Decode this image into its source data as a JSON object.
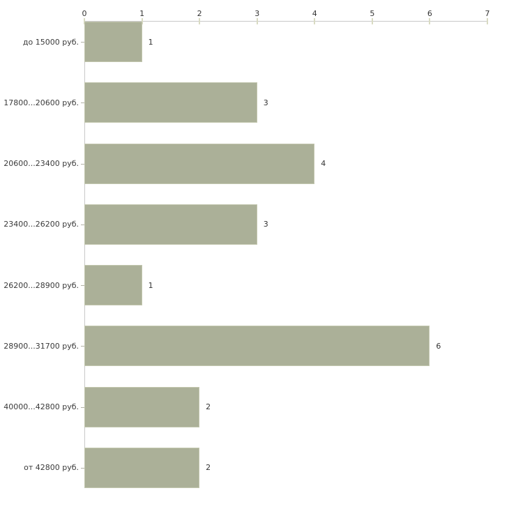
{
  "chart_data": {
    "type": "bar",
    "orientation": "horizontal",
    "title": "",
    "xlabel": "",
    "ylabel": "",
    "categories": [
      "до 15000 руб.",
      "17800...20600 руб.",
      "20600...23400 руб.",
      "23400...26200 руб.",
      "26200...28900 руб.",
      "28900...31700 руб.",
      "40000...42800 руб.",
      "от 42800 руб."
    ],
    "values": [
      1,
      3,
      4,
      3,
      1,
      6,
      2,
      2
    ],
    "value_labels": [
      "1",
      "3",
      "4",
      "3",
      "1",
      "6",
      "2",
      "2"
    ],
    "xlim": [
      0,
      7
    ],
    "x_ticks": [
      "0",
      "1",
      "2",
      "3",
      "4",
      "5",
      "6",
      "7"
    ],
    "axis_position": "top",
    "grid": false,
    "legend": null,
    "colors": {
      "bar_fill": "#abb098",
      "bar_border": "#c2c6ae",
      "axis_line": "#c8c8c8",
      "x_tick_mark": "#d9dbc3",
      "y_tick_mark": "#b2b2a6",
      "text": "#333333",
      "background": "#ffffff"
    }
  }
}
